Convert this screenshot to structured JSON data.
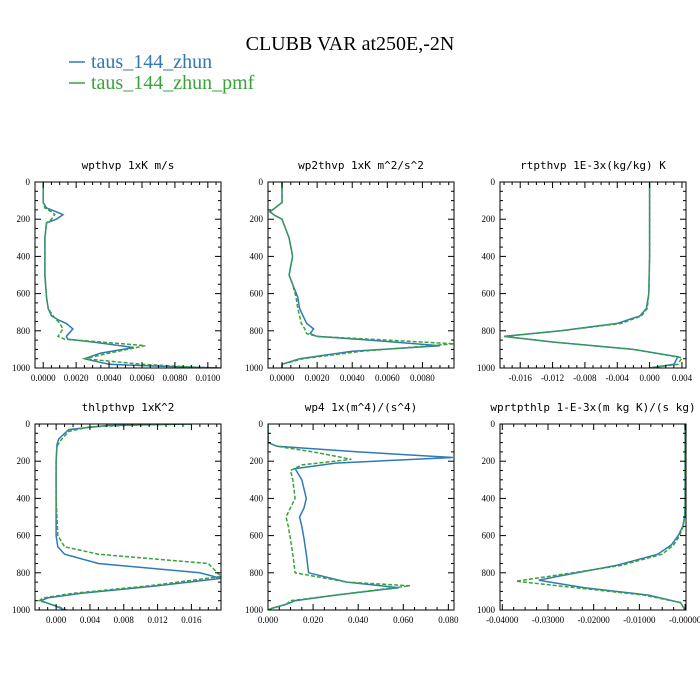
{
  "title": "CLUBB VAR at250E,-2N",
  "legend": [
    {
      "label": "taus_144_zhun",
      "color": "#2f7ab6",
      "dash": false
    },
    {
      "label": "taus_144_zhun_pmf",
      "color": "#3aa23a",
      "dash": true
    }
  ],
  "chart_data": [
    {
      "type": "line",
      "title": "wpthvp  1xK m/s",
      "xlim": [
        -0.0005,
        0.0108
      ],
      "ylim": [
        1000,
        0
      ],
      "xticks": [
        0,
        0.002,
        0.004,
        0.006,
        0.008,
        0.01
      ],
      "xticklabels": [
        "0.0000",
        "0.0020",
        "0.0040",
        "0.0060",
        "0.0080",
        "0.0100"
      ],
      "yticks": [
        0,
        200,
        400,
        600,
        800,
        1000
      ],
      "series": [
        {
          "name": "taus_144_zhun",
          "x": [
            0,
            0,
            0.0002,
            0.0008,
            0.0012,
            0.0008,
            0.0002,
            0.0001,
            0.0001,
            0.0002,
            0.0003,
            0.0005,
            0.001,
            0.0014,
            0.0018,
            0.0014,
            0.0015,
            0.003,
            0.0055,
            0.0035,
            0.0025,
            0.004,
            0.007,
            0.0108
          ],
          "y": [
            0,
            110,
            140,
            160,
            175,
            200,
            220,
            300,
            500,
            620,
            680,
            720,
            745,
            760,
            790,
            830,
            845,
            860,
            890,
            920,
            950,
            980,
            990,
            1000
          ]
        },
        {
          "name": "taus_144_zhun_pmf",
          "x": [
            0,
            0,
            0.0001,
            0.0005,
            0.0007,
            0.0005,
            0.0002,
            0.0001,
            0.0001,
            0.0002,
            0.0003,
            0.0006,
            0.001,
            0.0012,
            0.0009,
            0.0013,
            0.0035,
            0.0062,
            0.004,
            0.0025,
            0.006,
            0.01
          ],
          "y": [
            0,
            110,
            140,
            160,
            175,
            200,
            220,
            300,
            500,
            620,
            680,
            720,
            760,
            790,
            830,
            845,
            860,
            880,
            920,
            950,
            980,
            1000
          ]
        }
      ]
    },
    {
      "type": "line",
      "title": "wp2thvp  1xK m^2/s^2",
      "xlim": [
        -0.0008,
        0.0098
      ],
      "ylim": [
        1000,
        0
      ],
      "xticks": [
        0,
        0.002,
        0.004,
        0.006,
        0.008
      ],
      "xticklabels": [
        "0.0000",
        "0.0020",
        "0.0040",
        "0.0060",
        "0.0080"
      ],
      "yticks": [
        0,
        200,
        400,
        600,
        800,
        1000
      ],
      "series": [
        {
          "name": "taus_144_zhun",
          "x": [
            0,
            0,
            -0.0004,
            -0.0007,
            -0.0004,
            0,
            0.0002,
            0.0004,
            0.0006,
            0.0005,
            0.0004,
            0.0006,
            0.0009,
            0.001,
            0.0012,
            0.0014,
            0.0018,
            0.0016,
            0.002,
            0.005,
            0.009,
            0.004,
            0.001,
            0,
            0
          ],
          "y": [
            0,
            110,
            140,
            160,
            180,
            200,
            250,
            300,
            400,
            450,
            500,
            550,
            620,
            680,
            720,
            760,
            790,
            815,
            830,
            850,
            880,
            910,
            950,
            980,
            1000
          ]
        },
        {
          "name": "taus_144_zhun_pmf",
          "x": [
            0,
            0,
            -0.0004,
            -0.0007,
            -0.0004,
            0,
            0.0002,
            0.0004,
            0.0006,
            0.0005,
            0.0004,
            0.0006,
            0.0008,
            0.0009,
            0.001,
            0.0011,
            0.0013,
            0.0014,
            0.002,
            0.006,
            0.0098,
            0.0045,
            0.0012,
            0,
            0
          ],
          "y": [
            0,
            110,
            140,
            160,
            180,
            200,
            250,
            300,
            400,
            450,
            500,
            550,
            620,
            680,
            720,
            760,
            790,
            815,
            830,
            850,
            870,
            910,
            950,
            980,
            1000
          ]
        }
      ]
    },
    {
      "type": "line",
      "title": "rtpthvp  1E-3x(kg/kg) K",
      "xlim": [
        -0.0185,
        0.0045
      ],
      "ylim": [
        1000,
        0
      ],
      "xticks": [
        -0.016,
        -0.012,
        -0.008,
        -0.004,
        0,
        0.004
      ],
      "xticklabels": [
        "-0.016",
        "-0.012",
        "-0.008",
        "-0.004",
        "0.000",
        "0.004"
      ],
      "yticks": [
        0,
        200,
        400,
        600,
        800,
        1000
      ],
      "series": [
        {
          "name": "taus_144_zhun",
          "x": [
            0,
            0,
            -0.0001,
            -0.0004,
            -0.0012,
            -0.004,
            -0.011,
            -0.018,
            -0.012,
            -0.002,
            0.0035,
            0.003,
            0
          ],
          "y": [
            0,
            400,
            600,
            680,
            720,
            760,
            800,
            830,
            860,
            900,
            940,
            980,
            1000
          ]
        },
        {
          "name": "taus_144_zhun_pmf",
          "x": [
            0,
            0,
            -0.0001,
            -0.0003,
            -0.001,
            -0.0035,
            -0.011,
            -0.018,
            -0.012,
            -0.002,
            0.004,
            0.0035,
            0
          ],
          "y": [
            0,
            400,
            600,
            680,
            720,
            760,
            800,
            830,
            860,
            900,
            945,
            980,
            1000
          ]
        }
      ]
    },
    {
      "type": "line",
      "title": "thlpthvp  1xK^2",
      "xlim": [
        -0.0025,
        0.0195
      ],
      "ylim": [
        1000,
        0
      ],
      "xticks": [
        0,
        0.004,
        0.008,
        0.012,
        0.016
      ],
      "xticklabels": [
        "0.000",
        "0.004",
        "0.008",
        "0.012",
        "0.016"
      ],
      "yticks": [
        0,
        200,
        400,
        600,
        800,
        1000
      ],
      "series": [
        {
          "name": "taus_144_zhun",
          "x": [
            0.016,
            0.006,
            0.0015,
            0.0003,
            0.0001,
            0,
            0,
            0,
            0.0002,
            0.001,
            0.005,
            0.017,
            0.0195,
            0.012,
            0.003,
            -0.001,
            -0.0018,
            0,
            0.001
          ],
          "y": [
            0,
            8,
            30,
            80,
            110,
            200,
            400,
            600,
            660,
            700,
            750,
            800,
            830,
            870,
            910,
            935,
            950,
            980,
            1000
          ]
        },
        {
          "name": "taus_144_zhun_pmf",
          "x": [
            0.016,
            0.01,
            0.004,
            0.0015,
            0.0005,
            0.0001,
            0,
            0,
            0.0002,
            0.001,
            0.005,
            0.018,
            0.0195,
            0.011,
            0.002,
            -0.0015,
            -0.002,
            0.0002,
            0.0012
          ],
          "y": [
            0,
            5,
            15,
            40,
            90,
            120,
            200,
            400,
            600,
            660,
            700,
            750,
            820,
            870,
            910,
            935,
            950,
            980,
            1000
          ]
        }
      ]
    },
    {
      "type": "line",
      "title": "wp4  1x(m^4)/(s^4)",
      "xlim": [
        0,
        0.0825
      ],
      "ylim": [
        1000,
        0
      ],
      "xticks": [
        0,
        0.02,
        0.04,
        0.06,
        0.08
      ],
      "xticklabels": [
        "0.000",
        "0.020",
        "0.040",
        "0.060",
        "0.080"
      ],
      "yticks": [
        0,
        200,
        400,
        600,
        800,
        1000
      ],
      "series": [
        {
          "name": "taus_144_zhun",
          "x": [
            0,
            0,
            0.004,
            0.04,
            0.082,
            0.03,
            0.012,
            0.015,
            0.017,
            0.016,
            0.014,
            0.015,
            0.016,
            0.017,
            0.018,
            0.035,
            0.058,
            0.03,
            0.012,
            0.008,
            0.002,
            0
          ],
          "y": [
            0,
            100,
            120,
            150,
            180,
            210,
            240,
            300,
            400,
            450,
            500,
            550,
            620,
            700,
            800,
            850,
            880,
            920,
            950,
            970,
            990,
            1000
          ]
        },
        {
          "name": "taus_144_zhun_pmf",
          "x": [
            0,
            0,
            0.004,
            0.02,
            0.037,
            0.015,
            0.01,
            0.011,
            0.012,
            0.01,
            0.008,
            0.009,
            0.01,
            0.011,
            0.012,
            0.035,
            0.063,
            0.03,
            0.01,
            0.008,
            0.002,
            0
          ],
          "y": [
            0,
            100,
            120,
            150,
            190,
            220,
            250,
            300,
            400,
            450,
            500,
            550,
            620,
            700,
            800,
            850,
            870,
            920,
            950,
            970,
            990,
            1000
          ]
        }
      ]
    },
    {
      "type": "line",
      "title": "wprtpthlp  1-E-3x(m kg K)/(s kg)",
      "xlim": [
        -0.0405,
        0.0002
      ],
      "ylim": [
        1000,
        0
      ],
      "xticks": [
        -0.04,
        -0.03,
        -0.02,
        -0.01,
        0
      ],
      "xticklabels": [
        "-0.04000",
        "-0.03000",
        "-0.02000",
        "-0.01000",
        "-0.00000"
      ],
      "yticks": [
        0,
        200,
        400,
        600,
        800,
        1000
      ],
      "series": [
        {
          "name": "taus_144_zhun",
          "x": [
            0,
            0,
            -0.0001,
            -0.0005,
            -0.0015,
            -0.003,
            -0.006,
            -0.015,
            -0.028,
            -0.032,
            -0.022,
            -0.008,
            -0.001,
            0
          ],
          "y": [
            0,
            450,
            500,
            550,
            600,
            650,
            700,
            760,
            820,
            840,
            880,
            920,
            960,
            1000
          ]
        },
        {
          "name": "taus_144_zhun_pmf",
          "x": [
            0,
            0,
            -0.0001,
            -0.0004,
            -0.0012,
            -0.0025,
            -0.005,
            -0.014,
            -0.03,
            -0.037,
            -0.024,
            -0.009,
            -0.001,
            0
          ],
          "y": [
            0,
            450,
            500,
            550,
            600,
            650,
            700,
            760,
            820,
            845,
            880,
            920,
            960,
            1000
          ]
        }
      ]
    }
  ]
}
